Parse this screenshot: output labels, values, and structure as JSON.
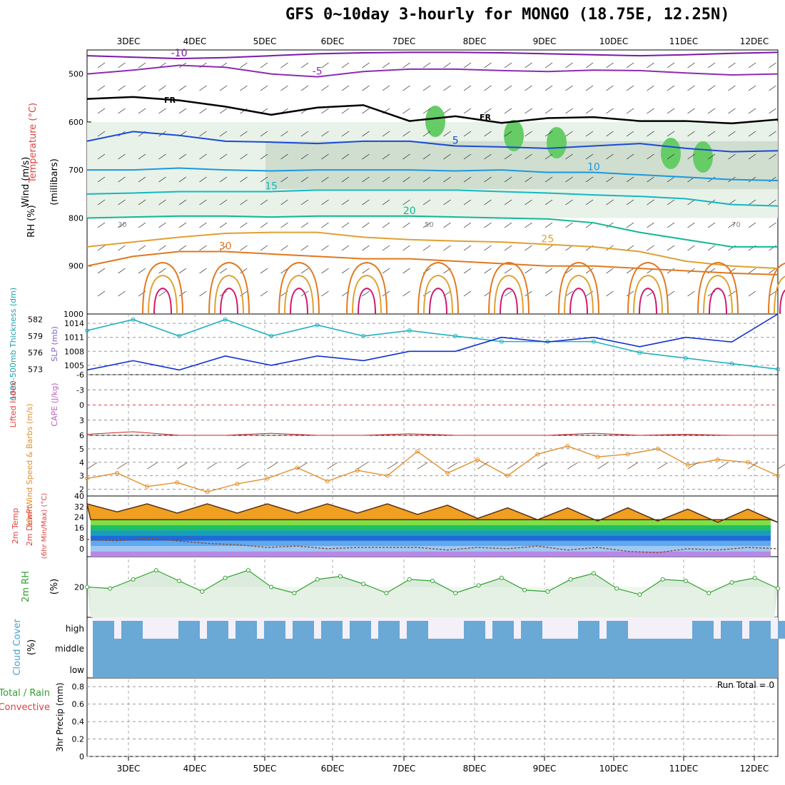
{
  "title": "GFS 0~10day 3-hourly for MONGO (18.75E, 12.25N)",
  "x_axis": {
    "labels": [
      "3DEC",
      "4DEC",
      "5DEC",
      "6DEC",
      "7DEC",
      "8DEC",
      "9DEC",
      "10DEC",
      "11DEC",
      "12DEC"
    ],
    "range_days": [
      0,
      10
    ]
  },
  "chart_data": [
    {
      "type": "line",
      "panel": "upper-air cross-section",
      "ylabels_left": [
        "Wind (m/s)",
        "Temperature (°C)",
        "RH (%)"
      ],
      "ylabel_units": "(millibars)",
      "y_ticks": [
        "500",
        "600",
        "700",
        "800",
        "900",
        "1000"
      ],
      "ylim": [
        450,
        1000
      ],
      "temperature_contours": [
        {
          "label": "-10",
          "color": "#7a18a8",
          "values": [
            462,
            465,
            468,
            466,
            462,
            458,
            456,
            455,
            455,
            456,
            458,
            460,
            462,
            460,
            457,
            455
          ]
        },
        {
          "label": "-5",
          "color": "#8c2cb0",
          "values": [
            500,
            492,
            482,
            486,
            500,
            506,
            495,
            490,
            490,
            493,
            495,
            492,
            493,
            498,
            502,
            500
          ]
        },
        {
          "label": "5",
          "color": "#1a4ad6",
          "values": [
            640,
            620,
            628,
            640,
            642,
            645,
            640,
            640,
            650,
            652,
            655,
            650,
            645,
            655,
            662,
            660
          ]
        },
        {
          "label": "10",
          "color": "#1a98e0",
          "values": [
            700,
            700,
            696,
            700,
            702,
            700,
            700,
            700,
            702,
            700,
            705,
            705,
            710,
            715,
            720,
            722
          ]
        },
        {
          "label": "15",
          "color": "#12b8c0",
          "values": [
            750,
            748,
            745,
            745,
            745,
            742,
            742,
            742,
            742,
            745,
            748,
            752,
            755,
            760,
            772,
            775
          ]
        },
        {
          "label": "20",
          "color": "#12b890",
          "values": [
            800,
            798,
            796,
            796,
            798,
            796,
            796,
            796,
            798,
            800,
            802,
            810,
            830,
            845,
            860,
            860
          ]
        },
        {
          "label": "25",
          "color": "#e0a030",
          "values": [
            860,
            850,
            840,
            832,
            830,
            830,
            840,
            845,
            848,
            850,
            855,
            860,
            870,
            890,
            900,
            905
          ]
        },
        {
          "label": "30",
          "color": "#e07820",
          "values": [
            900,
            880,
            870,
            870,
            875,
            880,
            885,
            885,
            890,
            895,
            900,
            900,
            905,
            910,
            915,
            918
          ]
        }
      ],
      "freezing_level_label": "FR",
      "freezing_level": [
        552,
        548,
        555,
        568,
        585,
        570,
        565,
        598,
        588,
        602,
        592,
        590,
        598,
        598,
        603,
        595
      ],
      "rh_shading_labels": [
        "30",
        "50",
        "70"
      ]
    },
    {
      "type": "line",
      "panel": "thickness and sea level pressure",
      "ylabel": "1000-500mb Thickness (dm)",
      "ylabel2": "SLP (mb)",
      "y_ticks_thickness": [
        "582",
        "579",
        "576",
        "573"
      ],
      "y_ticks_slp": [
        "1014",
        "1011",
        "1008",
        "1005"
      ],
      "series": [
        {
          "name": "thickness",
          "color": "#20b0c0",
          "values": [
            580,
            582,
            579,
            582,
            579,
            581,
            579,
            580,
            579,
            578,
            578,
            578,
            576,
            575,
            574,
            573
          ]
        },
        {
          "name": "slp",
          "color": "#1030d0",
          "values": [
            1004,
            1006,
            1004,
            1007,
            1005,
            1007,
            1006,
            1008,
            1008,
            1011,
            1010,
            1011,
            1009,
            1011,
            1010,
            1016
          ]
        }
      ]
    },
    {
      "type": "line",
      "panel": "lifted index and cape",
      "ylabel": "Lifted Index",
      "ylabel2": "CAPE (J/kg)",
      "y_ticks": [
        "-6",
        "-3",
        "0",
        "3",
        "6"
      ],
      "ylim": [
        -6,
        6
      ],
      "series": [
        {
          "name": "lifted_index",
          "color": "#d02020",
          "values": [
            5.8,
            5.3,
            6,
            6,
            5.6,
            6,
            6,
            5.7,
            6,
            6,
            6,
            5.6,
            6,
            5.8,
            6,
            6
          ]
        }
      ]
    },
    {
      "type": "line",
      "panel": "10m wind speed",
      "ylabel": "10m Wind Speed & Barbs (m/s)",
      "y_ticks": [
        "2",
        "3",
        "4",
        "5"
      ],
      "ylim": [
        1.5,
        6
      ],
      "series": [
        {
          "name": "wind_speed",
          "color": "#e09030",
          "values": [
            2.8,
            3.2,
            2.2,
            2.5,
            1.8,
            2.4,
            2.8,
            3.6,
            2.6,
            3.4,
            3.0,
            4.8,
            3.2,
            4.2,
            3.0,
            4.6,
            5.2,
            4.4,
            4.6,
            5.0,
            3.8,
            4.2,
            4.0,
            3.0
          ]
        }
      ]
    },
    {
      "type": "area",
      "panel": "2m temperature and dewpoint",
      "ylabel": "2m Temp",
      "ylabel2": "2m DewPt",
      "ylabel3": "(6hr Min/Max) (°C)",
      "y_ticks": [
        "40",
        "32",
        "24",
        "16",
        "8",
        "0"
      ],
      "ylim": [
        -6,
        40
      ],
      "series": [
        {
          "name": "temperature",
          "color": "#5a3018",
          "values": [
            34,
            28,
            34,
            27,
            34,
            27,
            34,
            27,
            34,
            27,
            34,
            26,
            33,
            23,
            31,
            22,
            31,
            21,
            31,
            21,
            30,
            20,
            30,
            20
          ]
        },
        {
          "name": "dewpoint",
          "color": "#8a4a30",
          "values": [
            7,
            6,
            8,
            6,
            4,
            3,
            1,
            2,
            0,
            1,
            1,
            1,
            -1,
            1,
            0,
            2,
            -1,
            1,
            -2,
            -3,
            0,
            -1,
            1,
            0
          ]
        }
      ]
    },
    {
      "type": "line",
      "panel": "2m relative humidity",
      "ylabel": "2m RH",
      "ylabel2": "(%)",
      "y_ticks": [
        "20"
      ],
      "ylim": [
        0,
        40
      ],
      "series": [
        {
          "name": "rh",
          "color": "#30a030",
          "values": [
            20,
            19,
            25,
            31,
            24,
            17,
            26,
            31,
            20,
            16,
            25,
            27,
            22,
            16,
            25,
            24,
            16,
            21,
            26,
            18,
            17,
            25,
            29,
            19,
            15,
            25,
            24,
            16,
            23,
            26,
            19
          ]
        }
      ]
    },
    {
      "type": "area",
      "panel": "cloud cover",
      "ylabel": "Cloud Cover",
      "ylabel2": "(%)",
      "categories": [
        "high",
        "middle",
        "low"
      ],
      "color": "#6aa8d6"
    },
    {
      "type": "bar",
      "panel": "3hr precipitation",
      "ylabel": "3hr Precip (mm)",
      "ylabel_left": "Total / Rain",
      "ylabel_left2": "Convective",
      "y_ticks": [
        "0",
        "0.2",
        "0.4",
        "0.6",
        "0.8"
      ],
      "ylim": [
        0,
        0.9
      ],
      "run_total_label": "Run Total = 0",
      "values": []
    }
  ]
}
